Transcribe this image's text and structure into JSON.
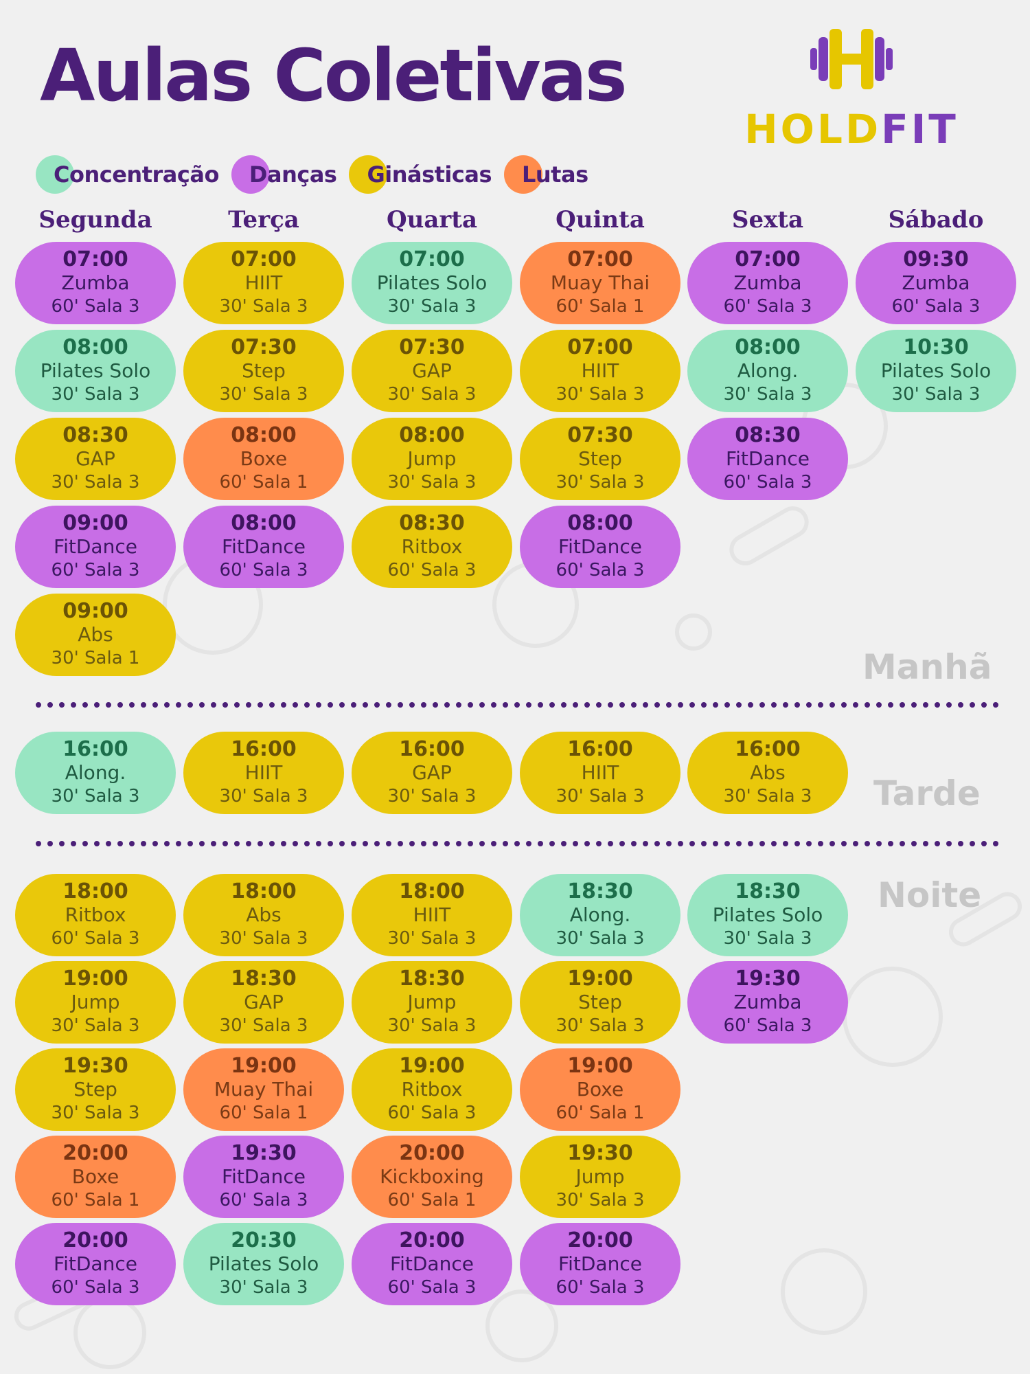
{
  "title": "Aulas Coletivas",
  "brand": {
    "name_part1": "HOLD",
    "name_part2": "FIT",
    "logo_icon": "barbell-h-icon"
  },
  "colors": {
    "concentracao": "#98e5c2",
    "dancas": "#c86ee6",
    "ginasticas": "#e9c80b",
    "lutas": "#ff8c4c",
    "title": "#4b1f78"
  },
  "legend": [
    {
      "label": "Concentração",
      "category": "concentracao"
    },
    {
      "label": "Danças",
      "category": "dancas"
    },
    {
      "label": "Ginásticas",
      "category": "ginasticas"
    },
    {
      "label": "Lutas",
      "category": "lutas"
    }
  ],
  "days": [
    "Segunda",
    "Terça",
    "Quarta",
    "Quinta",
    "Sexta",
    "Sábado"
  ],
  "periods": [
    "Manhã",
    "Tarde",
    "Noite"
  ],
  "schedule": {
    "manha": [
      [
        {
          "time": "07:00",
          "name": "Zumba",
          "info": "60' Sala 3",
          "category": "dancas"
        },
        {
          "time": "08:00",
          "name": "Pilates Solo",
          "info": "30' Sala 3",
          "category": "concentracao"
        },
        {
          "time": "08:30",
          "name": "GAP",
          "info": "30' Sala 3",
          "category": "ginasticas"
        },
        {
          "time": "09:00",
          "name": "FitDance",
          "info": "60' Sala 3",
          "category": "dancas"
        },
        {
          "time": "09:00",
          "name": "Abs",
          "info": "30' Sala 1",
          "category": "ginasticas"
        }
      ],
      [
        {
          "time": "07:00",
          "name": "HIIT",
          "info": "30' Sala 3",
          "category": "ginasticas"
        },
        {
          "time": "07:30",
          "name": "Step",
          "info": "30' Sala 3",
          "category": "ginasticas"
        },
        {
          "time": "08:00",
          "name": "Boxe",
          "info": "60' Sala 1",
          "category": "lutas"
        },
        {
          "time": "08:00",
          "name": "FitDance",
          "info": "60' Sala 3",
          "category": "dancas"
        }
      ],
      [
        {
          "time": "07:00",
          "name": "Pilates Solo",
          "info": "30' Sala 3",
          "category": "concentracao"
        },
        {
          "time": "07:30",
          "name": "GAP",
          "info": "30' Sala 3",
          "category": "ginasticas"
        },
        {
          "time": "08:00",
          "name": "Jump",
          "info": "30' Sala 3",
          "category": "ginasticas"
        },
        {
          "time": "08:30",
          "name": "Ritbox",
          "info": "60' Sala 3",
          "category": "ginasticas"
        }
      ],
      [
        {
          "time": "07:00",
          "name": "Muay Thai",
          "info": "60' Sala 1",
          "category": "lutas"
        },
        {
          "time": "07:00",
          "name": "HIIT",
          "info": "30' Sala 3",
          "category": "ginasticas"
        },
        {
          "time": "07:30",
          "name": "Step",
          "info": "30' Sala 3",
          "category": "ginasticas"
        },
        {
          "time": "08:00",
          "name": "FitDance",
          "info": "60' Sala 3",
          "category": "dancas"
        }
      ],
      [
        {
          "time": "07:00",
          "name": "Zumba",
          "info": "60' Sala 3",
          "category": "dancas"
        },
        {
          "time": "08:00",
          "name": "Along.",
          "info": "30' Sala 3",
          "category": "concentracao"
        },
        {
          "time": "08:30",
          "name": "FitDance",
          "info": "60' Sala 3",
          "category": "dancas"
        }
      ],
      [
        {
          "time": "09:30",
          "name": "Zumba",
          "info": "60' Sala 3",
          "category": "dancas"
        },
        {
          "time": "10:30",
          "name": "Pilates Solo",
          "info": "30' Sala 3",
          "category": "concentracao"
        }
      ]
    ],
    "tarde": [
      [
        {
          "time": "16:00",
          "name": "Along.",
          "info": "30' Sala 3",
          "category": "concentracao"
        }
      ],
      [
        {
          "time": "16:00",
          "name": "HIIT",
          "info": "30' Sala 3",
          "category": "ginasticas"
        }
      ],
      [
        {
          "time": "16:00",
          "name": "GAP",
          "info": "30' Sala 3",
          "category": "ginasticas"
        }
      ],
      [
        {
          "time": "16:00",
          "name": "HIIT",
          "info": "30' Sala 3",
          "category": "ginasticas"
        }
      ],
      [
        {
          "time": "16:00",
          "name": "Abs",
          "info": "30' Sala 3",
          "category": "ginasticas"
        }
      ],
      []
    ],
    "noite": [
      [
        {
          "time": "18:00",
          "name": "Ritbox",
          "info": "60' Sala 3",
          "category": "ginasticas"
        },
        {
          "time": "19:00",
          "name": "Jump",
          "info": "30' Sala 3",
          "category": "ginasticas"
        },
        {
          "time": "19:30",
          "name": "Step",
          "info": "30' Sala 3",
          "category": "ginasticas"
        },
        {
          "time": "20:00",
          "name": "Boxe",
          "info": "60' Sala 1",
          "category": "lutas"
        },
        {
          "time": "20:00",
          "name": "FitDance",
          "info": "60' Sala 3",
          "category": "dancas"
        }
      ],
      [
        {
          "time": "18:00",
          "name": "Abs",
          "info": "30' Sala 3",
          "category": "ginasticas"
        },
        {
          "time": "18:30",
          "name": "GAP",
          "info": "30' Sala 3",
          "category": "ginasticas"
        },
        {
          "time": "19:00",
          "name": "Muay Thai",
          "info": "60' Sala 1",
          "category": "lutas"
        },
        {
          "time": "19:30",
          "name": "FitDance",
          "info": "60' Sala 3",
          "category": "dancas"
        },
        {
          "time": "20:30",
          "name": "Pilates Solo",
          "info": "30' Sala 3",
          "category": "concentracao"
        }
      ],
      [
        {
          "time": "18:00",
          "name": "HIIT",
          "info": "30' Sala 3",
          "category": "ginasticas"
        },
        {
          "time": "18:30",
          "name": "Jump",
          "info": "30' Sala 3",
          "category": "ginasticas"
        },
        {
          "time": "19:00",
          "name": "Ritbox",
          "info": "60' Sala 3",
          "category": "ginasticas"
        },
        {
          "time": "20:00",
          "name": "Kickboxing",
          "info": "60' Sala 1",
          "category": "lutas"
        },
        {
          "time": "20:00",
          "name": "FitDance",
          "info": "60' Sala 3",
          "category": "dancas"
        }
      ],
      [
        {
          "time": "18:30",
          "name": "Along.",
          "info": "30' Sala 3",
          "category": "concentracao"
        },
        {
          "time": "19:00",
          "name": "Step",
          "info": "30' Sala 3",
          "category": "ginasticas"
        },
        {
          "time": "19:00",
          "name": "Boxe",
          "info": "60' Sala 1",
          "category": "lutas"
        },
        {
          "time": "19:30",
          "name": "Jump",
          "info": "30' Sala 3",
          "category": "ginasticas"
        },
        {
          "time": "20:00",
          "name": "FitDance",
          "info": "60' Sala 3",
          "category": "dancas"
        }
      ],
      [
        {
          "time": "18:30",
          "name": "Pilates Solo",
          "info": "30' Sala 3",
          "category": "concentracao"
        },
        {
          "time": "19:30",
          "name": "Zumba",
          "info": "60' Sala 3",
          "category": "dancas"
        }
      ],
      []
    ]
  }
}
